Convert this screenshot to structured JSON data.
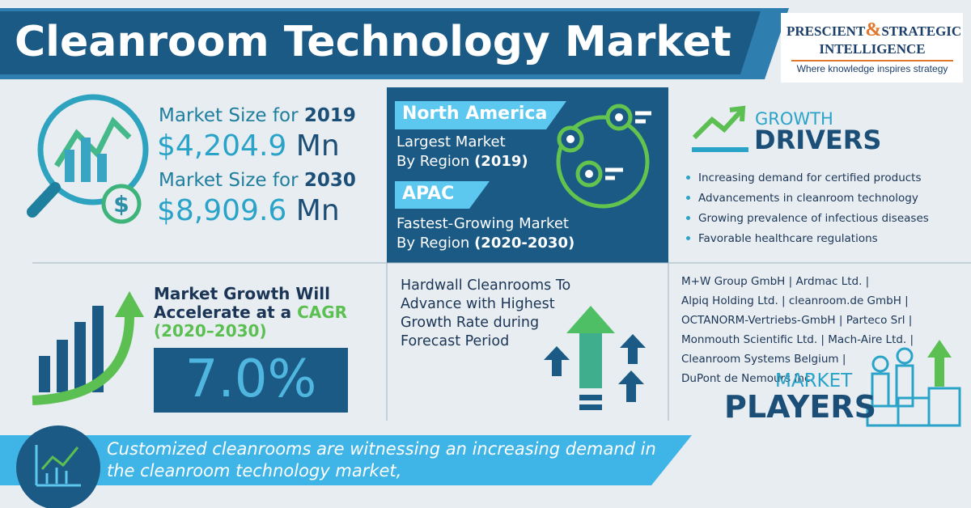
{
  "header": {
    "title": "Cleanroom Technology Market",
    "logo": {
      "name_left": "PRESCIENT",
      "ampersand": "&",
      "name_right": "STRATEGIC",
      "name_bottom": "INTELLIGENCE",
      "tagline": "Where knowledge inspires strategy"
    }
  },
  "market_size": [
    {
      "label": "Market Size for",
      "year": "2019",
      "value": "$4,204.9",
      "unit": "Mn"
    },
    {
      "label": "Market Size for",
      "year": "2030",
      "value": "$8,909.6",
      "unit": "Mn"
    }
  ],
  "regions": [
    {
      "name": "North America",
      "line1": "Largest Market",
      "line2": "By Region",
      "period": "(2019)"
    },
    {
      "name": "APAC",
      "line1": "Fastest-Growing Market",
      "line2": "By Region",
      "period": "(2020-2030)"
    }
  ],
  "growth_drivers": {
    "title_top": "GROWTH",
    "title_bottom": "DRIVERS",
    "items": [
      "Increasing demand for certified products",
      "Advancements in cleanroom technology",
      "Growing prevalence of infectious diseases",
      "Favorable healthcare regulations"
    ]
  },
  "cagr": {
    "line1": "Market Growth Will",
    "line2": "Accelerate at a",
    "highlight": "CAGR",
    "period": "(2020–2030)",
    "value": "7.0%"
  },
  "segment": {
    "lines": [
      "Hardwall Cleanrooms To",
      "Advance with Highest",
      "Growth Rate during",
      "Forecast Period"
    ]
  },
  "players": {
    "lines": [
      "M+W Group GmbH | Ardmac Ltd. |",
      "Alpiq Holding Ltd. | cleanroom.de GmbH |",
      "OCTANORM-Vertriebs-GmbH | Parteco Srl |",
      "Monmouth Scientific Ltd. | Mach-Aire Ltd. |",
      "Cleanroom Systems Belgium |",
      "DuPont de Nemours Inc."
    ],
    "title_top": "MARKET",
    "title_bottom": "PLAYERS"
  },
  "footer": {
    "text": "Customized cleanrooms are witnessing an increasing demand in the cleanroom technology market,"
  }
}
